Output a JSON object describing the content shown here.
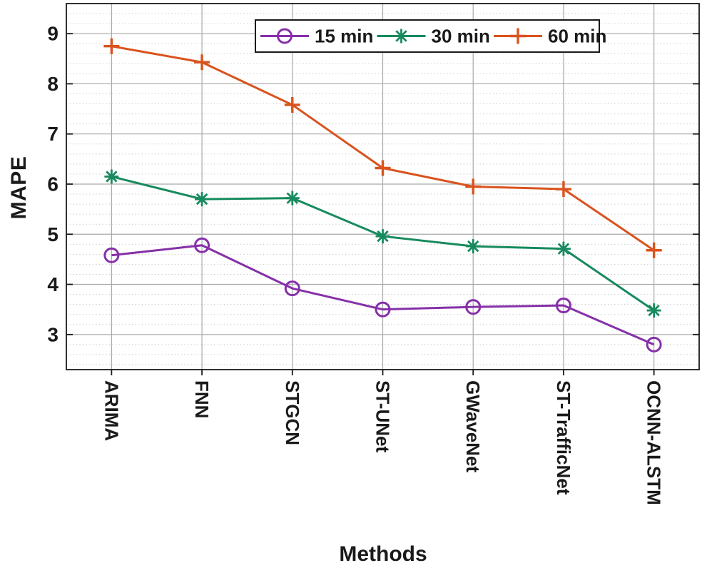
{
  "chart_data": {
    "type": "line",
    "title": "",
    "xlabel": "Methods",
    "ylabel": "MAPE",
    "categories": [
      "ARIMA",
      "FNN",
      "STGCN",
      "ST-UNet",
      "GWaveNet",
      "ST-TrafficNet",
      "OCNN-ALSTM"
    ],
    "series": [
      {
        "name": "15 min",
        "color": "#8530a8",
        "marker": "circle",
        "values": [
          4.58,
          4.78,
          3.92,
          3.5,
          3.55,
          3.58,
          2.8
        ]
      },
      {
        "name": "30 min",
        "color": "#178a5e",
        "marker": "asterisk",
        "values": [
          6.15,
          5.7,
          5.72,
          4.96,
          4.76,
          4.71,
          3.48
        ]
      },
      {
        "name": "60 min",
        "color": "#d9531e",
        "marker": "plus",
        "values": [
          8.75,
          8.43,
          7.58,
          6.32,
          5.95,
          5.9,
          4.68
        ]
      }
    ],
    "ylim": [
      2.3,
      9.6
    ],
    "yticks": [
      3,
      4,
      5,
      6,
      7,
      8,
      9
    ],
    "minor_tick_step": 0.2,
    "grid": "major-solid, minor-dotted-horizontal, vertical-at-categories",
    "legend_position": "top-center",
    "legend_labels": [
      "15 min",
      "30 min",
      "60 min"
    ]
  },
  "colors": {
    "axis": "#1a1a1a",
    "text": "#1a1a1a",
    "grid_major": "#a9a9a9",
    "grid_minor": "#c3c3c3",
    "background": "#ffffff",
    "legend_border": "#1a1a1a",
    "legend_background": "#ffffff"
  }
}
